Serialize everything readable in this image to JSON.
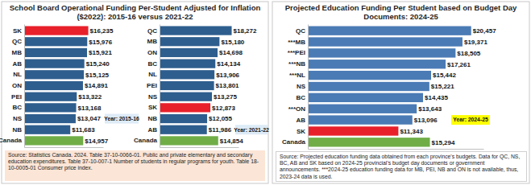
{
  "panels": [
    {
      "title": "School Board Operational Funding Per-Student Adjusted for Inflation ($2022): 2015-16 versus 2021-22",
      "source": "Source: Statistics Canada. 2024. Table 37-10-0066-01. Public and private elementary and secondary education expenditures. Table 37-10-007-1 Number of students in regular programs for youth. Table 18-10-0005-01 Consumer price index."
    },
    {
      "title": "Projected Education Funding Per Student based on Budget Day Documents: 2024-25",
      "source": "Source: Projected education funding data obtained from each province's budgets. Data for QC, NS, BC, AB and SK based on 2024-25 provincial's budget day documents or government announcements. ***2024-25 education funding data for MB, PEI, NB and ON is not available, thus, 2023-24 data is used."
    }
  ],
  "chart_data": [
    {
      "type": "bar",
      "orientation": "horizontal",
      "data_labels": true,
      "tick_labels": "y",
      "annotations": [
        "Year: 2015-16"
      ],
      "categories": [
        "SK",
        "QC",
        "MB",
        "AB",
        "NL",
        "ON",
        "PEI",
        "BC",
        "NS",
        "NB",
        "Canada"
      ],
      "values": [
        16235,
        15976,
        15921,
        15240,
        15125,
        14891,
        13322,
        13168,
        13047,
        11683,
        14957
      ],
      "value_labels": [
        "$16,235",
        "$15,976",
        "$15,921",
        "$15,240",
        "$15,125",
        "$14,891",
        "$13,322",
        "$13,168",
        "$13,047",
        "$11,683",
        "$14,957"
      ],
      "colors": [
        "#e8202a",
        "#2e5e8e",
        "#2e5e8e",
        "#2e5e8e",
        "#2e5e8e",
        "#2e5e8e",
        "#2e5e8e",
        "#2e5e8e",
        "#2e5e8e",
        "#2e5e8e",
        "#70ad47"
      ],
      "xlim": [
        0,
        20000
      ]
    },
    {
      "type": "bar",
      "orientation": "horizontal",
      "data_labels": true,
      "tick_labels": "y",
      "annotations": [
        "Year: 2021-22"
      ],
      "categories": [
        "QC",
        "MB",
        "ON",
        "BC",
        "NL",
        "PEI",
        "NS",
        "SK",
        "NB",
        "AB",
        "Canada"
      ],
      "values": [
        18272,
        15180,
        14698,
        14134,
        13906,
        13801,
        13275,
        12873,
        12055,
        11986,
        14854
      ],
      "value_labels": [
        "$18,272",
        "$15,180",
        "$14,698",
        "$14,134",
        "$13,906",
        "$13,801",
        "$13,275",
        "$12,873",
        "$12,055",
        "$11,986",
        "$14,854"
      ],
      "colors": [
        "#2e5e8e",
        "#2e5e8e",
        "#2e5e8e",
        "#2e5e8e",
        "#2e5e8e",
        "#2e5e8e",
        "#2e5e8e",
        "#e8202a",
        "#2e5e8e",
        "#2e5e8e",
        "#70ad47"
      ],
      "xlim": [
        0,
        20000
      ]
    },
    {
      "type": "bar",
      "orientation": "horizontal",
      "data_labels": true,
      "tick_labels": "y",
      "annotations": [
        "Year: 2024-25"
      ],
      "categories": [
        "QC",
        "***MB",
        "***PEI",
        "***NB",
        "***NL",
        "NS",
        "BC",
        "***ON",
        "AB",
        "SK",
        "Canada"
      ],
      "values": [
        20457,
        19371,
        18505,
        17261,
        15442,
        15221,
        14435,
        13643,
        13096,
        11343,
        15294
      ],
      "value_labels": [
        "$20,457",
        "$19,371",
        "$18,505",
        "$17,261",
        "$15,442",
        "$15,221",
        "$14,435",
        "$13,643",
        "$13,096",
        "$11,343",
        "$15,294"
      ],
      "colors": [
        "#4a7bb5",
        "#4a7bb5",
        "#4a7bb5",
        "#4a7bb5",
        "#4a7bb5",
        "#4a7bb5",
        "#4a7bb5",
        "#4a7bb5",
        "#4a7bb5",
        "#e8202a",
        "#70ad47"
      ],
      "xlim": [
        0,
        22000
      ]
    }
  ]
}
